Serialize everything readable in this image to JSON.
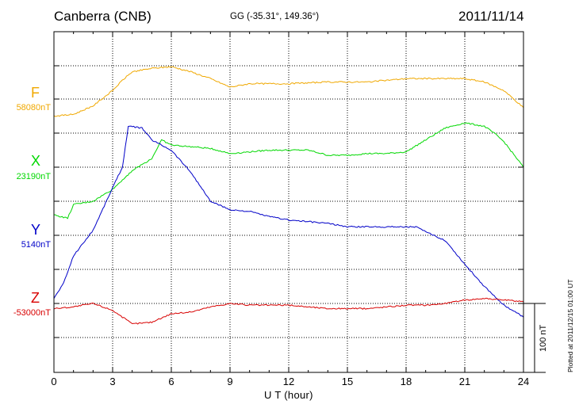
{
  "header": {
    "station": "Canberra (CNB)",
    "coords": "GG (-35.31°, 149.36°)",
    "date": "2011/11/14"
  },
  "footer": {
    "plotted": "Plotted at 2011/12/15 01:00 UT"
  },
  "chart_data": {
    "type": "line",
    "title": "Canberra (CNB)",
    "xlabel": "U T (hour)",
    "ylabel": "",
    "xlim": [
      0,
      24
    ],
    "xticks": [
      0,
      3,
      6,
      9,
      12,
      15,
      18,
      21,
      24
    ],
    "grid": true,
    "scale_bar": {
      "label": "100 nT",
      "value_nT": 100
    },
    "colors": {
      "F": "#f0a800",
      "X": "#00d800",
      "Y": "#0000c8",
      "Z": "#d80000"
    },
    "series": [
      {
        "name": "F",
        "baseline_label": "58080nT",
        "baseline_nT": 58080,
        "x": [
          0,
          1,
          2,
          3,
          3.5,
          4,
          5,
          6,
          7,
          8,
          9,
          10,
          12,
          14,
          15,
          16,
          18,
          20,
          21,
          22,
          23,
          24
        ],
        "values": [
          -10,
          -9,
          -4,
          5,
          11,
          16,
          18,
          19,
          16,
          12,
          7,
          9,
          9,
          10,
          10,
          10,
          12,
          12,
          12,
          10,
          5,
          -5
        ]
      },
      {
        "name": "X",
        "baseline_label": "23190nT",
        "baseline_nT": 23190,
        "x": [
          0,
          0.7,
          1,
          2,
          3,
          4,
          5,
          5.5,
          6,
          7,
          8,
          9,
          10,
          11,
          12,
          13,
          14,
          15,
          16,
          17,
          18,
          19,
          20,
          21,
          22,
          22.5,
          23,
          24
        ],
        "values": [
          -28,
          -30,
          -22,
          -20,
          -13,
          -2,
          5,
          16,
          13,
          12,
          11,
          8,
          9,
          10,
          10,
          10,
          7,
          7,
          8,
          8,
          9,
          16,
          23,
          26,
          24,
          20,
          15,
          0
        ]
      },
      {
        "name": "Y",
        "baseline_label": "5140nT",
        "baseline_nT": 5140,
        "x": [
          0,
          0.5,
          1,
          2,
          3,
          3.5,
          3.8,
          4.5,
          5,
          6,
          7,
          8,
          9,
          10,
          11,
          12,
          13,
          14,
          15,
          16,
          17,
          18,
          18.5,
          19,
          20,
          21,
          22,
          23,
          24
        ],
        "values": [
          -37,
          -28,
          -12,
          3,
          28,
          40,
          64,
          63,
          56,
          50,
          37,
          20,
          15,
          14,
          11,
          9,
          8,
          7,
          5,
          5,
          5,
          5,
          5,
          2,
          -3,
          -17,
          -30,
          -41,
          -48
        ]
      },
      {
        "name": "Z",
        "baseline_label": "-53000nT",
        "baseline_nT": -53000,
        "x": [
          0,
          1,
          2,
          3,
          4,
          5,
          6,
          7,
          8,
          9,
          10,
          11,
          12,
          13,
          14,
          15,
          16,
          17,
          18,
          19,
          20,
          21,
          22,
          23,
          24
        ],
        "values": [
          -3,
          -2,
          0,
          -4,
          -12,
          -11,
          -6,
          -5,
          -2,
          0,
          -1,
          -1,
          -1,
          -2,
          -3,
          -3,
          -3,
          -2,
          -1,
          -1,
          0,
          2,
          3,
          2,
          1
        ]
      }
    ]
  }
}
